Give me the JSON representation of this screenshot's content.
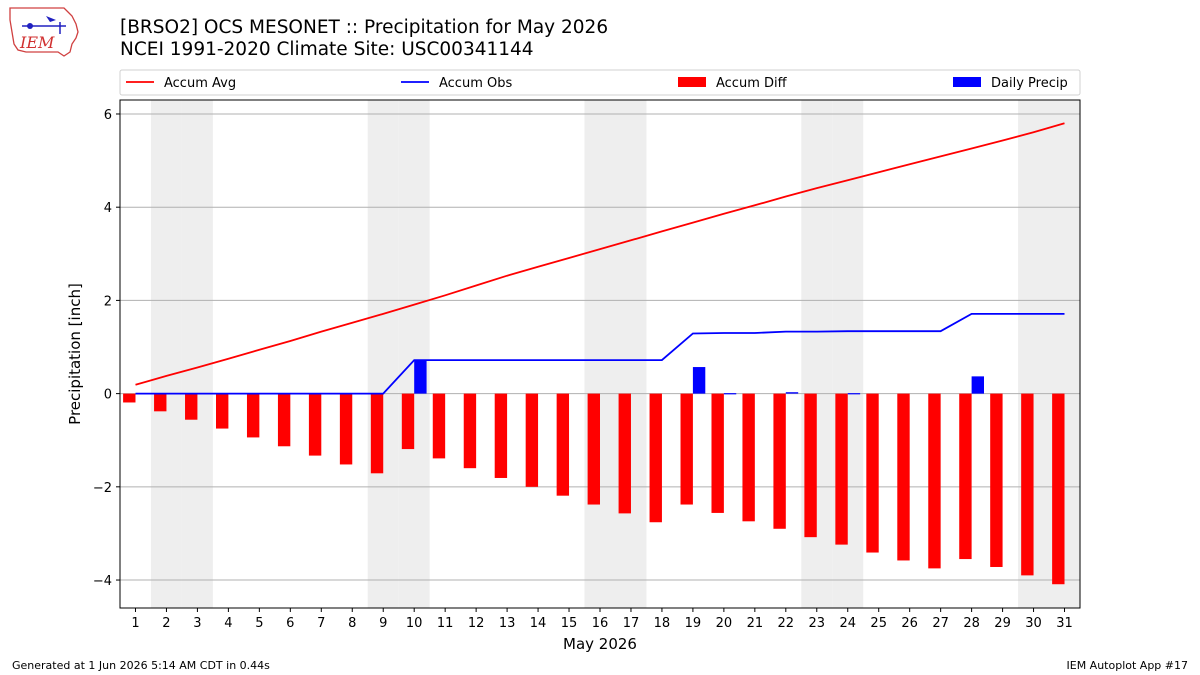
{
  "header": {
    "title_line1": "[BRSO2] OCS MESONET :: Precipitation for May 2026",
    "title_line2": "NCEI 1991-2020 Climate Site: USC00341144",
    "logo_text": "IEM"
  },
  "footer": {
    "left": "Generated at 1 Jun 2026 5:14 AM CDT in 0.44s",
    "right": "IEM Autoplot App #17"
  },
  "colors": {
    "avg": "#ff0000",
    "obs": "#0000ff",
    "diff": "#ff0000",
    "daily": "#0000ff",
    "weekend_shade": "#eeeeee",
    "grid": "#b0b0b0"
  },
  "chart_data": {
    "type": "bar",
    "xlabel": "May 2026",
    "ylabel": "Precipitation [inch]",
    "ylim": [
      -4.6,
      6.3
    ],
    "yticks": [
      -4,
      -2,
      0,
      2,
      4,
      6
    ],
    "ytick_labels": [
      "−4",
      "−2",
      "0",
      "2",
      "4",
      "6"
    ],
    "grid": "horizontal",
    "legend_position": "top",
    "days": [
      1,
      2,
      3,
      4,
      5,
      6,
      7,
      8,
      9,
      10,
      11,
      12,
      13,
      14,
      15,
      16,
      17,
      18,
      19,
      20,
      21,
      22,
      23,
      24,
      25,
      26,
      27,
      28,
      29,
      30,
      31
    ],
    "day_labels": [
      "1",
      "2",
      "3",
      "4",
      "5",
      "6",
      "7",
      "8",
      "9",
      "10",
      "11",
      "12",
      "13",
      "14",
      "15",
      "16",
      "17",
      "18",
      "19",
      "20",
      "21",
      "22",
      "23",
      "24",
      "25",
      "26",
      "27",
      "28",
      "29",
      "30",
      "31"
    ],
    "weekend_days": [
      2,
      3,
      9,
      10,
      16,
      17,
      23,
      24,
      30,
      31
    ],
    "series": [
      {
        "name": "Accum Avg",
        "kind": "line",
        "values": [
          0.19,
          0.38,
          0.56,
          0.75,
          0.94,
          1.13,
          1.33,
          1.52,
          1.71,
          1.91,
          2.11,
          2.32,
          2.53,
          2.72,
          2.91,
          3.1,
          3.29,
          3.48,
          3.67,
          3.86,
          4.04,
          4.23,
          4.41,
          4.58,
          4.75,
          4.92,
          5.09,
          5.26,
          5.43,
          5.61,
          5.8
        ]
      },
      {
        "name": "Accum Obs",
        "kind": "line",
        "values": [
          0,
          0,
          0,
          0,
          0,
          0,
          0,
          0,
          0,
          0.72,
          0.72,
          0.72,
          0.72,
          0.72,
          0.72,
          0.72,
          0.72,
          0.72,
          1.29,
          1.3,
          1.3,
          1.33,
          1.33,
          1.34,
          1.34,
          1.34,
          1.34,
          1.71,
          1.71,
          1.71,
          1.71
        ]
      },
      {
        "name": "Accum Diff",
        "kind": "bar",
        "values": [
          -0.19,
          -0.38,
          -0.56,
          -0.75,
          -0.94,
          -1.13,
          -1.33,
          -1.52,
          -1.71,
          -1.19,
          -1.39,
          -1.6,
          -1.81,
          -2.0,
          -2.19,
          -2.38,
          -2.57,
          -2.76,
          -2.38,
          -2.56,
          -2.74,
          -2.9,
          -3.08,
          -3.24,
          -3.41,
          -3.58,
          -3.75,
          -3.55,
          -3.72,
          -3.9,
          -4.09
        ]
      },
      {
        "name": "Daily Precip",
        "kind": "bar",
        "values": [
          0,
          0,
          0,
          0,
          0,
          0,
          0,
          0,
          0,
          0.72,
          0,
          0,
          0,
          0,
          0,
          0,
          0,
          0,
          0.57,
          0.01,
          0,
          0.03,
          0,
          0.01,
          0,
          0,
          0,
          0.37,
          0,
          0,
          0
        ]
      }
    ]
  }
}
